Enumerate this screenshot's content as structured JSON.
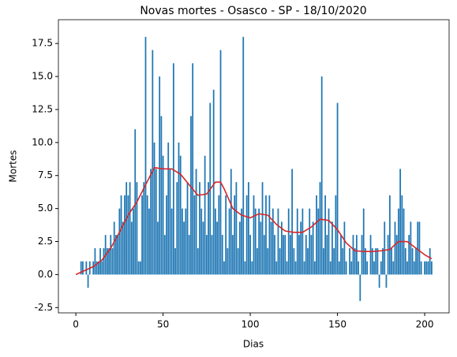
{
  "chart_data": {
    "type": "bar",
    "title": "Novas mortes - Osasco - SP - 18/10/2020",
    "x_label": "Dias",
    "y_label": "Mortes",
    "xlim": [
      -10,
      214
    ],
    "xticks": [
      0,
      50,
      100,
      150,
      200
    ],
    "ylim": [
      -2.9,
      19.3
    ],
    "yticks": [
      -2.5,
      {
        "value": 0,
        "label": "0.0"
      },
      2.5,
      {
        "value": 5,
        "label": "5.0"
      },
      7.5,
      {
        "value": 10,
        "label": "10.0"
      },
      12.5,
      {
        "value": 15,
        "label": "15.0"
      },
      17.5
    ],
    "series": [
      {
        "type": "bar",
        "color": "#1f77b4",
        "x": [
          0,
          1,
          2,
          3,
          4,
          5,
          6,
          7,
          8,
          9,
          10,
          11,
          12,
          13,
          14,
          15,
          16,
          17,
          18,
          19,
          20,
          21,
          22,
          23,
          24,
          25,
          26,
          27,
          28,
          29,
          30,
          31,
          32,
          33,
          34,
          35,
          36,
          37,
          38,
          39,
          40,
          41,
          42,
          43,
          44,
          45,
          46,
          47,
          48,
          49,
          50,
          51,
          52,
          53,
          54,
          55,
          56,
          57,
          58,
          59,
          60,
          61,
          62,
          63,
          64,
          65,
          66,
          67,
          68,
          69,
          70,
          71,
          72,
          73,
          74,
          75,
          76,
          77,
          78,
          79,
          80,
          81,
          82,
          83,
          84,
          85,
          86,
          87,
          88,
          89,
          90,
          91,
          92,
          93,
          94,
          95,
          96,
          97,
          98,
          99,
          100,
          101,
          102,
          103,
          104,
          105,
          106,
          107,
          108,
          109,
          110,
          111,
          112,
          113,
          114,
          115,
          116,
          117,
          118,
          119,
          120,
          121,
          122,
          123,
          124,
          125,
          126,
          127,
          128,
          129,
          130,
          131,
          132,
          133,
          134,
          135,
          136,
          137,
          138,
          139,
          140,
          141,
          142,
          143,
          144,
          145,
          146,
          147,
          148,
          149,
          150,
          151,
          152,
          153,
          154,
          155,
          156,
          157,
          158,
          159,
          160,
          161,
          162,
          163,
          164,
          165,
          166,
          167,
          168,
          169,
          170,
          171,
          172,
          173,
          174,
          175,
          176,
          177,
          178,
          179,
          180,
          181,
          182,
          183,
          184,
          185,
          186,
          187,
          188,
          189,
          190,
          191,
          192,
          193,
          194,
          195,
          196,
          197,
          198,
          199,
          200,
          201,
          202,
          203,
          204
        ],
        "values": [
          0,
          0,
          0,
          1,
          1,
          0,
          1,
          -1,
          1,
          0,
          1,
          2,
          1,
          1,
          2,
          1,
          2,
          3,
          2,
          2,
          3,
          2,
          4,
          3,
          3,
          5,
          6,
          4,
          6,
          7,
          6,
          7,
          4,
          5,
          11,
          7,
          1,
          1,
          6,
          7,
          18,
          6,
          5,
          8,
          17,
          10,
          8,
          4,
          15,
          12,
          9,
          3,
          6,
          10,
          8,
          5,
          16,
          2,
          7,
          10,
          9,
          5,
          4,
          5,
          7,
          3,
          12,
          16,
          6,
          8,
          2,
          7,
          5,
          4,
          9,
          3,
          7,
          13,
          3,
          14,
          5,
          4,
          6,
          17,
          3,
          1,
          6,
          2,
          5,
          8,
          3,
          6,
          7,
          2,
          4,
          5,
          18,
          1,
          6,
          7,
          3,
          1,
          6,
          5,
          2,
          5,
          4,
          7,
          3,
          6,
          2,
          6,
          4,
          5,
          3,
          1,
          5,
          2,
          4,
          3,
          3,
          1,
          5,
          3,
          8,
          2,
          1,
          5,
          3,
          4,
          5,
          1,
          3,
          2,
          5,
          3,
          4,
          1,
          6,
          5,
          7,
          15,
          2,
          6,
          3,
          5,
          1,
          4,
          2,
          6,
          13,
          1,
          3,
          2,
          4,
          1,
          0,
          2,
          1,
          3,
          2,
          3,
          1,
          -2,
          3,
          5,
          2,
          1,
          0,
          3,
          2,
          1,
          2,
          2,
          -1,
          1,
          2,
          4,
          -1,
          3,
          6,
          2,
          1,
          4,
          3,
          5,
          8,
          6,
          5,
          2,
          1,
          3,
          4,
          2,
          1,
          2,
          4,
          4,
          1,
          0,
          1,
          1,
          1,
          2,
          1
        ]
      },
      {
        "type": "line",
        "color": "#d62728",
        "x": [
          0,
          5,
          10,
          15,
          20,
          25,
          30,
          35,
          40,
          45,
          50,
          55,
          60,
          65,
          70,
          75,
          80,
          83,
          85,
          90,
          95,
          100,
          105,
          110,
          115,
          120,
          125,
          130,
          135,
          140,
          145,
          150,
          155,
          160,
          165,
          170,
          175,
          180,
          185,
          190,
          195,
          200,
          204
        ],
        "values": [
          0,
          0.3,
          0.6,
          1.1,
          2,
          3.2,
          4.5,
          5.5,
          6.8,
          8.1,
          8,
          8,
          7.6,
          6.8,
          6,
          6.1,
          7,
          7,
          6.5,
          5,
          4.5,
          4.3,
          4.6,
          4.5,
          3.8,
          3.3,
          3.2,
          3.2,
          3.6,
          4.2,
          4.1,
          3.4,
          2.4,
          1.8,
          1.75,
          1.75,
          1.8,
          1.9,
          2.5,
          2.5,
          2,
          1.5,
          1.2
        ]
      }
    ]
  }
}
